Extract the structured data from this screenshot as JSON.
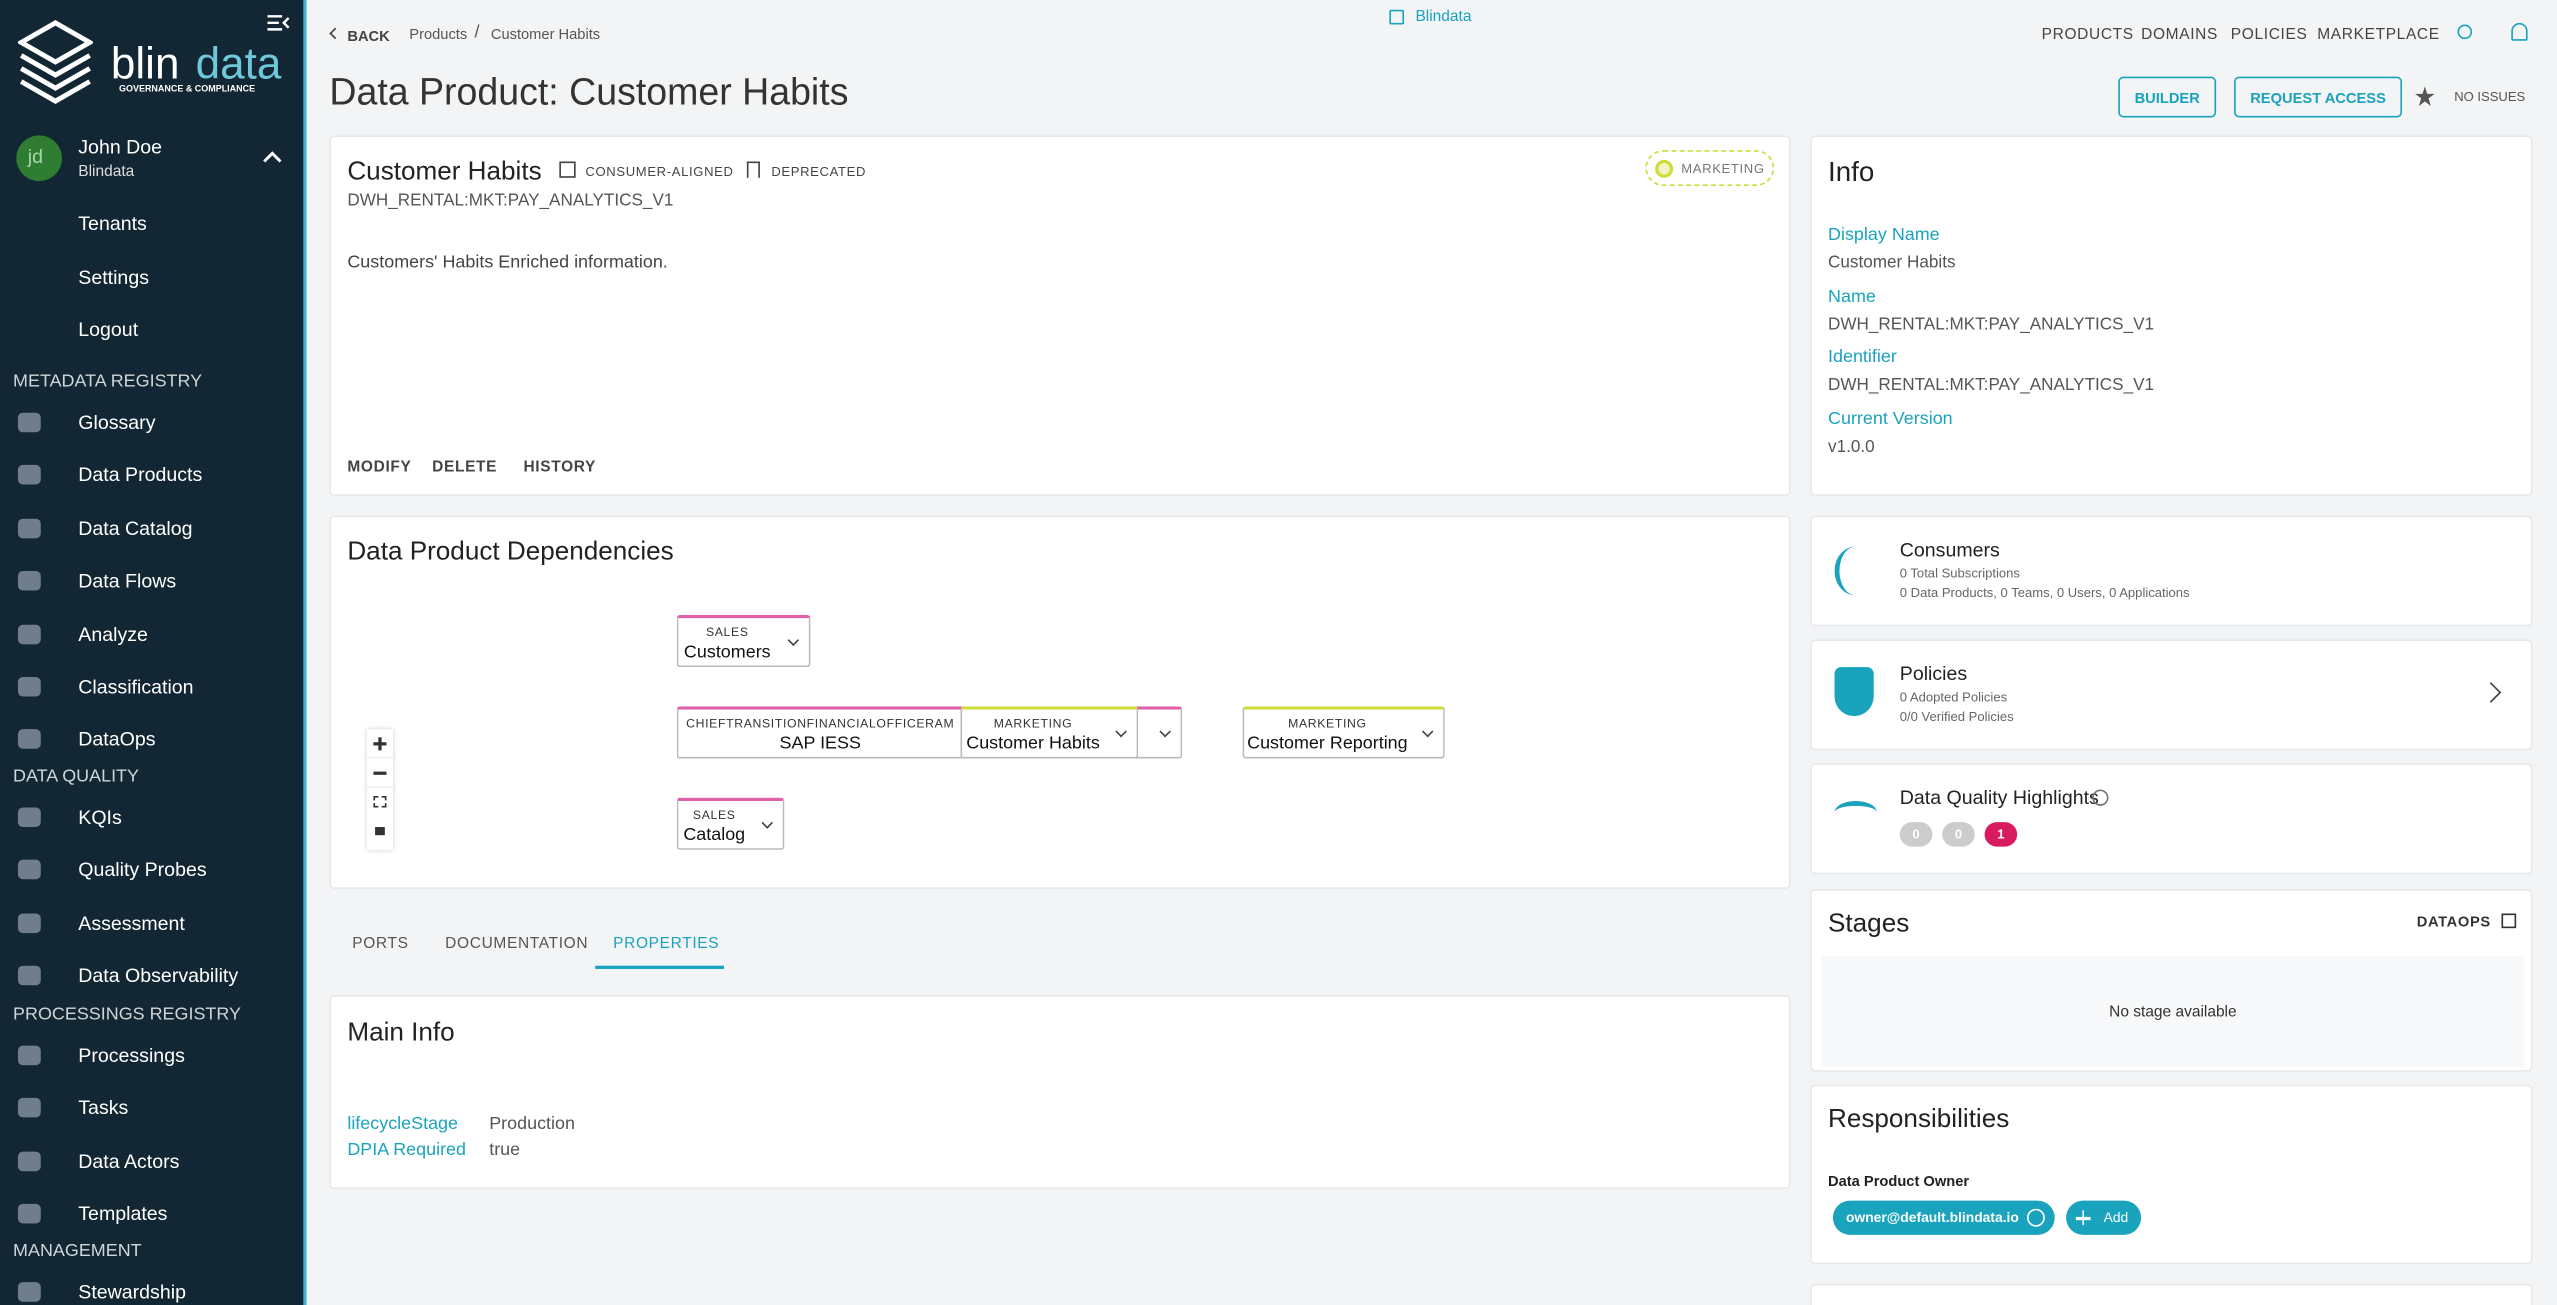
{
  "sidebar": {
    "brand": {
      "lead": "blin",
      "accent": "data"
    },
    "tagline": "GOVERNANCE & COMPLIANCE",
    "user": {
      "initials": "jd",
      "name": "John Doe",
      "org": "Blindata"
    },
    "user_menu": [
      "Tenants",
      "Settings",
      "Logout"
    ],
    "sections": [
      {
        "title": "METADATA REGISTRY",
        "items": [
          "Glossary",
          "Data Products",
          "Data Catalog",
          "Data Flows",
          "Analyze",
          "Classification",
          "DataOps"
        ]
      },
      {
        "title": "DATA QUALITY",
        "items": [
          "KQIs",
          "Quality Probes",
          "Assessment",
          "Data Observability"
        ]
      },
      {
        "title": "PROCESSINGS REGISTRY",
        "items": [
          "Processings",
          "Tasks",
          "Data Actors",
          "Templates"
        ]
      },
      {
        "title": "MANAGEMENT",
        "items": [
          "Stewardship"
        ]
      }
    ]
  },
  "topbar": {
    "back": "BACK",
    "breadcrumb": [
      "Products",
      "Customer Habits"
    ],
    "separator": "/",
    "tenant": "Blindata",
    "nav": [
      "PRODUCTS",
      "DOMAINS",
      "POLICIES",
      "MARKETPLACE"
    ]
  },
  "header": {
    "title": "Data Product: Customer Habits",
    "actions": [
      "BUILDER",
      "REQUEST ACCESS"
    ],
    "issues": "NO ISSUES"
  },
  "product_card": {
    "name": "Customer Habits",
    "tags": [
      "CONSUMER-ALIGNED",
      "DEPRECATED"
    ],
    "domain": "MARKETING",
    "identifier": "DWH_RENTAL:MKT:PAY_ANALYTICS_V1",
    "description": "Customers' Habits Enriched information.",
    "actions": [
      "MODIFY",
      "DELETE",
      "HISTORY"
    ]
  },
  "info": {
    "title": "Info",
    "fields": [
      {
        "label": "Display Name",
        "value": "Customer Habits"
      },
      {
        "label": "Name",
        "value": "DWH_RENTAL:MKT:PAY_ANALYTICS_V1"
      },
      {
        "label": "Identifier",
        "value": "DWH_RENTAL:MKT:PAY_ANALYTICS_V1"
      },
      {
        "label": "Current Version",
        "value": "v1.0.0"
      }
    ]
  },
  "dependencies": {
    "title": "Data Product Dependencies",
    "nodes": [
      {
        "domain": "SALES",
        "name": "Customers"
      },
      {
        "domain": "CHIEFTRANSITIONFINANCIALOFFICERAM",
        "name": "SAP IESS"
      },
      {
        "domain": "MARKETING",
        "name": "Customer Habits"
      },
      {
        "domain": "MARKETING",
        "name": "Customer Reporting"
      },
      {
        "domain": "SALES",
        "name": "Catalog"
      }
    ]
  },
  "consumers": {
    "title": "Consumers",
    "lines": [
      "0 Total Subscriptions",
      "0 Data Products, 0 Teams, 0 Users, 0 Applications"
    ]
  },
  "policies": {
    "title": "Policies",
    "lines": [
      "0 Adopted Policies",
      "0/0 Verified Policies"
    ]
  },
  "data_quality": {
    "title": "Data Quality Highlights",
    "badges": [
      0,
      0,
      1
    ]
  },
  "tabs": [
    "PORTS",
    "DOCUMENTATION",
    "PROPERTIES"
  ],
  "main_info": {
    "title": "Main Info",
    "rows": [
      [
        "lifecycleStage",
        "Production"
      ],
      [
        "DPIA Required",
        "true"
      ]
    ]
  },
  "stages": {
    "title": "Stages",
    "link": "DATAOPS",
    "empty": "No stage available"
  },
  "responsibilities": {
    "title": "Responsibilities",
    "role": "Data Product Owner",
    "owner": "owner@default.blindata.io",
    "add": "Add"
  }
}
